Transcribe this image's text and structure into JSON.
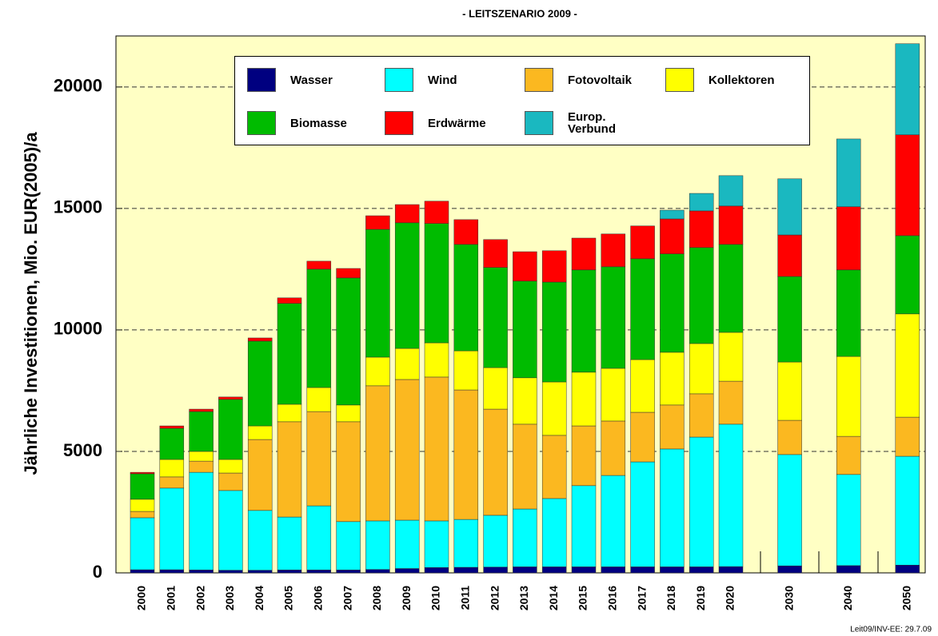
{
  "chart_data": {
    "type": "stacked-bar",
    "title": "- LEITSZENARIO 2009 -",
    "y_label": "Jährliche Investitionen, Mio. EUR(2005)/a",
    "footnote": "Leit09/INV-EE: 29.7.09",
    "categories": [
      "2000",
      "2001",
      "2002",
      "2003",
      "2004",
      "2005",
      "2006",
      "2007",
      "2008",
      "2009",
      "2010",
      "2011",
      "2012",
      "2013",
      "2014",
      "2015",
      "2016",
      "2017",
      "2018",
      "2019",
      "2020",
      "2030",
      "2040",
      "2050"
    ],
    "ylim": [
      0,
      22100
    ],
    "yticks": [
      0,
      5000,
      10000,
      15000,
      20000
    ],
    "grid": true,
    "series": [
      {
        "name": "Wasser",
        "color": "#000080",
        "values": [
          130,
          130,
          120,
          110,
          110,
          120,
          120,
          120,
          140,
          180,
          220,
          230,
          240,
          250,
          250,
          250,
          250,
          250,
          250,
          250,
          260,
          290,
          300,
          320
        ]
      },
      {
        "name": "Wind",
        "color": "#00ffff",
        "values": [
          2140,
          3360,
          4020,
          3280,
          2460,
          2180,
          2640,
          1990,
          2000,
          1990,
          1920,
          1970,
          2130,
          2380,
          2810,
          3340,
          3760,
          4320,
          4850,
          5340,
          5860,
          4580,
          3750,
          4480
        ]
      },
      {
        "name": "Fotovoltaik",
        "color": "#fbb820",
        "values": [
          260,
          460,
          460,
          720,
          2920,
          3920,
          3880,
          4110,
          5560,
          5790,
          5920,
          5330,
          4370,
          3490,
          2600,
          2460,
          2240,
          2040,
          1810,
          1780,
          1770,
          1410,
          1570,
          1610
        ]
      },
      {
        "name": "Kollektoren",
        "color": "#ffff00",
        "values": [
          500,
          720,
          400,
          560,
          560,
          720,
          990,
          690,
          1180,
          1280,
          1410,
          1610,
          1710,
          1910,
          2200,
          2210,
          2170,
          2170,
          2170,
          2070,
          2010,
          2400,
          3290,
          4250
        ]
      },
      {
        "name": "Biomasse",
        "color": "#00bb00",
        "values": [
          1050,
          1280,
          1640,
          2470,
          3490,
          4150,
          4870,
          5230,
          5260,
          5170,
          4910,
          4380,
          4120,
          3980,
          4110,
          4210,
          4180,
          4150,
          4050,
          3950,
          3620,
          3520,
          3560,
          3220
        ]
      },
      {
        "name": "Erdwärme",
        "color": "#ff0000",
        "values": [
          60,
          100,
          100,
          100,
          130,
          230,
          330,
          390,
          560,
          750,
          920,
          1020,
          1150,
          1210,
          1290,
          1310,
          1350,
          1350,
          1440,
          1510,
          1580,
          1710,
          2600,
          4150
        ]
      },
      {
        "name": "Europ. Verbund",
        "color": "#1ab8c0",
        "values": [
          0,
          0,
          0,
          0,
          0,
          0,
          0,
          0,
          0,
          0,
          0,
          0,
          0,
          0,
          0,
          0,
          0,
          0,
          360,
          720,
          1250,
          2310,
          2790,
          3750
        ]
      }
    ]
  }
}
